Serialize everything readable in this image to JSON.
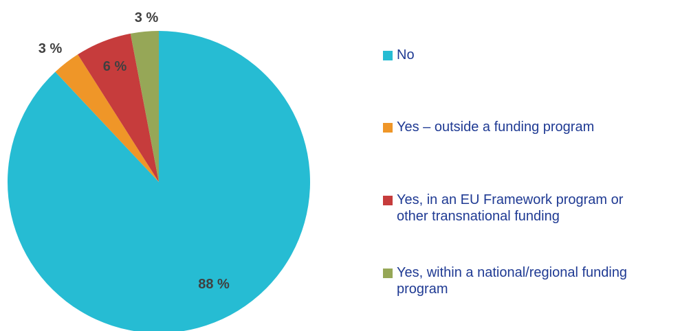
{
  "chart_data": {
    "type": "pie",
    "title": "",
    "slices": [
      {
        "label": "No",
        "value": 88,
        "data_label": "88 %",
        "color": "#26BCD3"
      },
      {
        "label": "Yes – outside a funding program",
        "value": 3,
        "data_label": "3 %",
        "color": "#EF9628"
      },
      {
        "label": "Yes, in an EU Framework program or\nother transnational funding",
        "value": 6,
        "data_label": "6 %",
        "color": "#C63C3C"
      },
      {
        "label": "Yes, within a national/regional funding\nprogram",
        "value": 3,
        "data_label": "3 %",
        "color": "#96A757"
      }
    ],
    "legend_position": "right"
  }
}
